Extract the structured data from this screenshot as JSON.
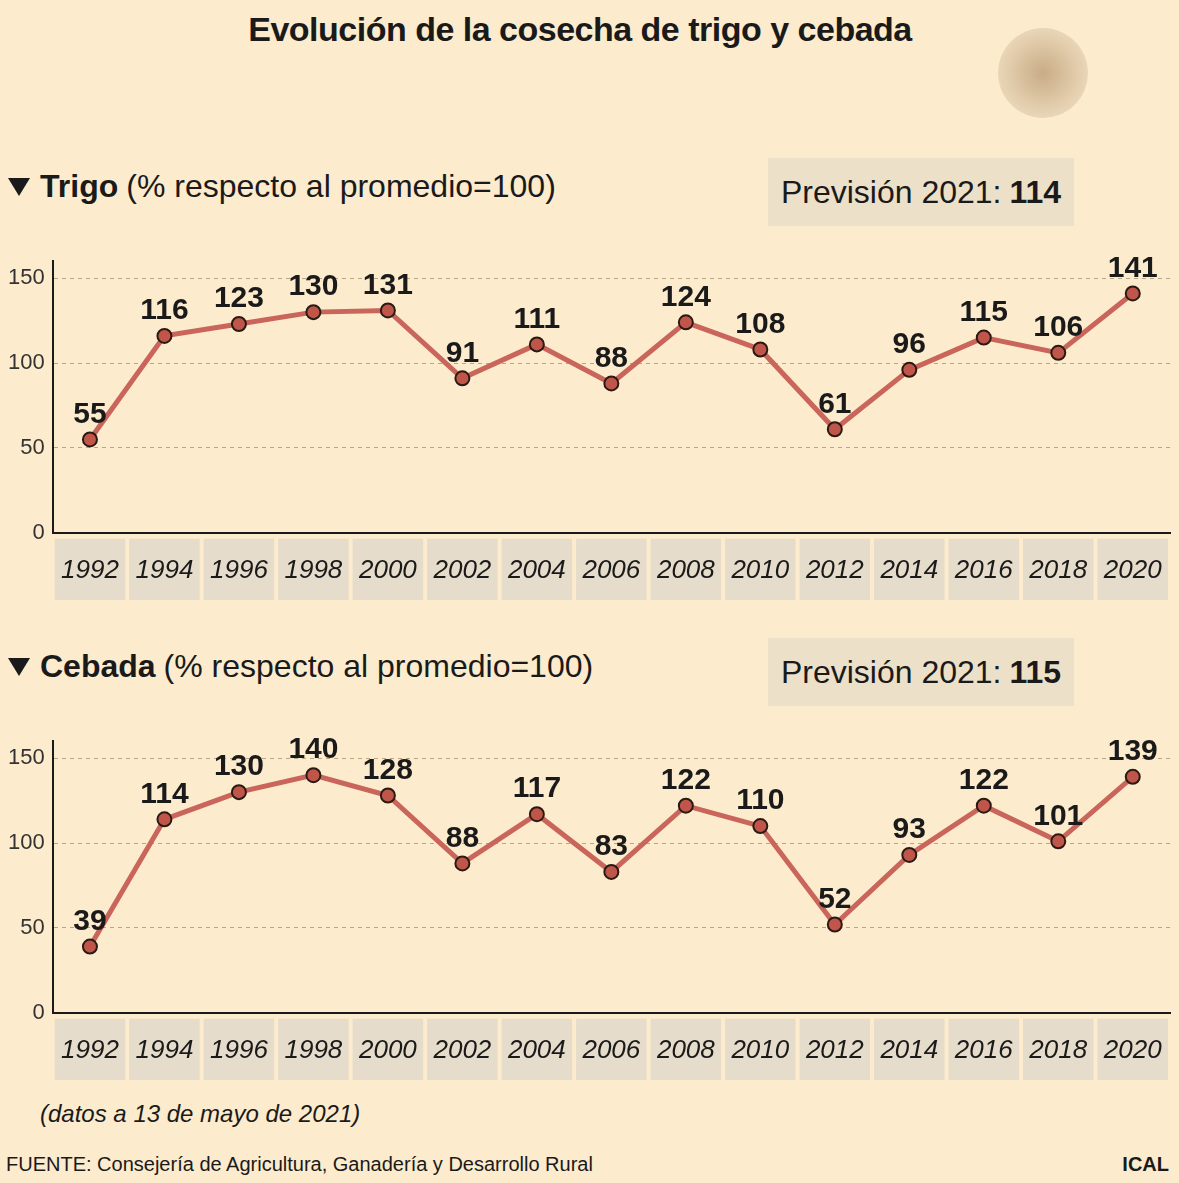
{
  "title": "Evolución de la cosecha de trigo y cebada",
  "note": "(datos a 13 de mayo de 2021)",
  "source": "FUENTE: Consejería de Agricultura, Ganadería y Desarrollo Rural",
  "credit": "ICAL",
  "chart_data": [
    {
      "type": "line",
      "title": "Trigo",
      "subtitle": "(% respecto al promedio=100)",
      "annotation": {
        "label": "Previsión 2021:",
        "value": 114
      },
      "categories": [
        "1992",
        "1994",
        "1996",
        "1998",
        "2000",
        "2002",
        "2004",
        "2006",
        "2008",
        "2010",
        "2012",
        "2014",
        "2016",
        "2018",
        "2020"
      ],
      "values": [
        55,
        116,
        123,
        130,
        131,
        91,
        111,
        88,
        124,
        108,
        61,
        96,
        115,
        106,
        141
      ],
      "color": "#c9655a",
      "marker": "circle",
      "line_style": "solid",
      "ylim": [
        0,
        160
      ],
      "yticks": [
        0,
        50,
        100,
        150
      ],
      "grid": true,
      "data_labels": true
    },
    {
      "type": "line",
      "title": "Cebada",
      "subtitle": "(% respecto al promedio=100)",
      "annotation": {
        "label": "Previsión 2021:",
        "value": 115
      },
      "categories": [
        "1992",
        "1994",
        "1996",
        "1998",
        "2000",
        "2002",
        "2004",
        "2006",
        "2008",
        "2010",
        "2012",
        "2014",
        "2016",
        "2018",
        "2020"
      ],
      "values": [
        39,
        114,
        130,
        140,
        128,
        88,
        117,
        83,
        122,
        110,
        52,
        93,
        122,
        101,
        139
      ],
      "color": "#c9655a",
      "marker": "circle",
      "line_style": "solid",
      "ylim": [
        0,
        160
      ],
      "yticks": [
        0,
        50,
        100,
        150
      ],
      "grid": true,
      "data_labels": true
    }
  ]
}
